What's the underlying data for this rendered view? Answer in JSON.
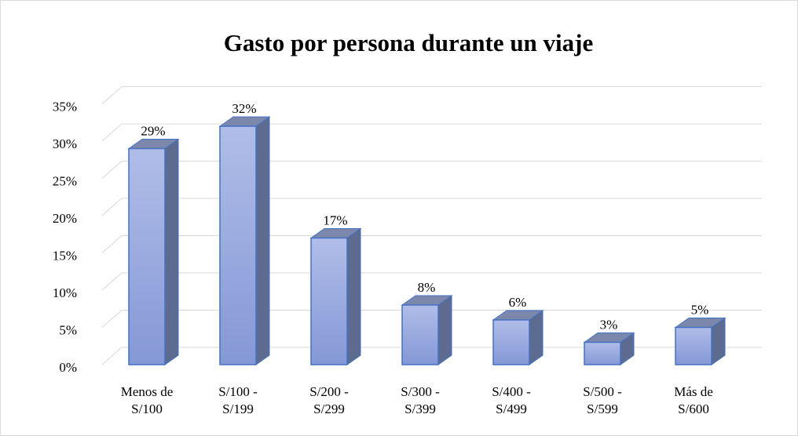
{
  "chart_data": {
    "type": "bar3d",
    "title": "Gasto por persona durante un viaje",
    "categories": [
      "Menos de S/100",
      "S/100 - S/199",
      "S/200 - S/299",
      "S/300 - S/399",
      "S/400 - S/499",
      "S/500 - S/599",
      "Más de S/600"
    ],
    "values": [
      29,
      32,
      17,
      8,
      6,
      3,
      5
    ],
    "value_labels": [
      "29%",
      "32%",
      "17%",
      "8%",
      "6%",
      "3%",
      "5%"
    ],
    "color": "#8fa3dd",
    "ylim": [
      0,
      35
    ],
    "yticks": [
      {
        "value": 0,
        "label": "0%"
      },
      {
        "value": 5,
        "label": "5%"
      },
      {
        "value": 10,
        "label": "10%"
      },
      {
        "value": 15,
        "label": "15%"
      },
      {
        "value": 20,
        "label": "20%"
      },
      {
        "value": 25,
        "label": "25%"
      },
      {
        "value": 30,
        "label": "30%"
      },
      {
        "value": 35,
        "label": "35%"
      }
    ],
    "grid": true
  }
}
